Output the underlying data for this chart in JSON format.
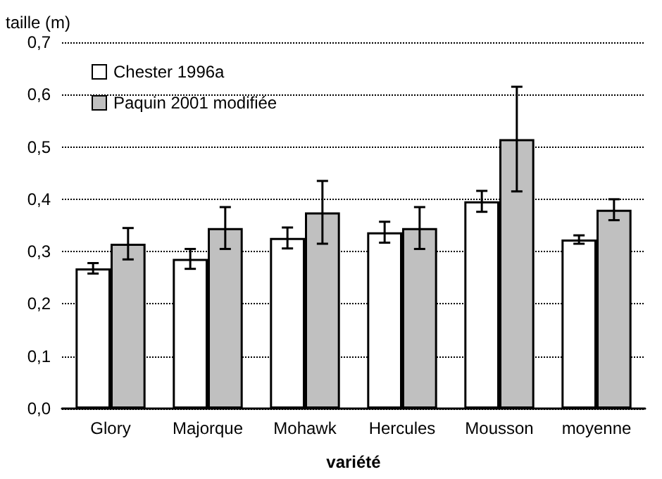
{
  "chart_data": {
    "type": "bar",
    "xlabel": "variété",
    "ylabel": "taille (m)",
    "categories": [
      "Glory",
      "Majorque",
      "Mohawk",
      "Hercules",
      "Mousson",
      "moyenne"
    ],
    "series": [
      {
        "name": "Chester 1996a",
        "color": "#ffffff",
        "values": [
          0.268,
          0.286,
          0.326,
          0.337,
          0.396,
          0.323
        ],
        "errors": [
          0.01,
          0.019,
          0.02,
          0.02,
          0.02,
          0.008
        ]
      },
      {
        "name": "Paquin 2001 modifiée",
        "color": "#c0c0c0",
        "values": [
          0.315,
          0.345,
          0.375,
          0.345,
          0.515,
          0.38
        ],
        "errors": [
          0.03,
          0.04,
          0.06,
          0.04,
          0.1,
          0.02
        ]
      }
    ],
    "ylim": [
      0,
      0.7
    ],
    "yticks": [
      {
        "value": 0,
        "label": "0,0"
      },
      {
        "value": 0.1,
        "label": "0,1"
      },
      {
        "value": 0.2,
        "label": "0,2"
      },
      {
        "value": 0.3,
        "label": "0,3"
      },
      {
        "value": 0.4,
        "label": "0,4"
      },
      {
        "value": 0.5,
        "label": "0,5"
      },
      {
        "value": 0.6,
        "label": "0,6"
      },
      {
        "value": 0.7,
        "label": "0,7"
      }
    ],
    "grid": "y",
    "legend": "top left"
  }
}
